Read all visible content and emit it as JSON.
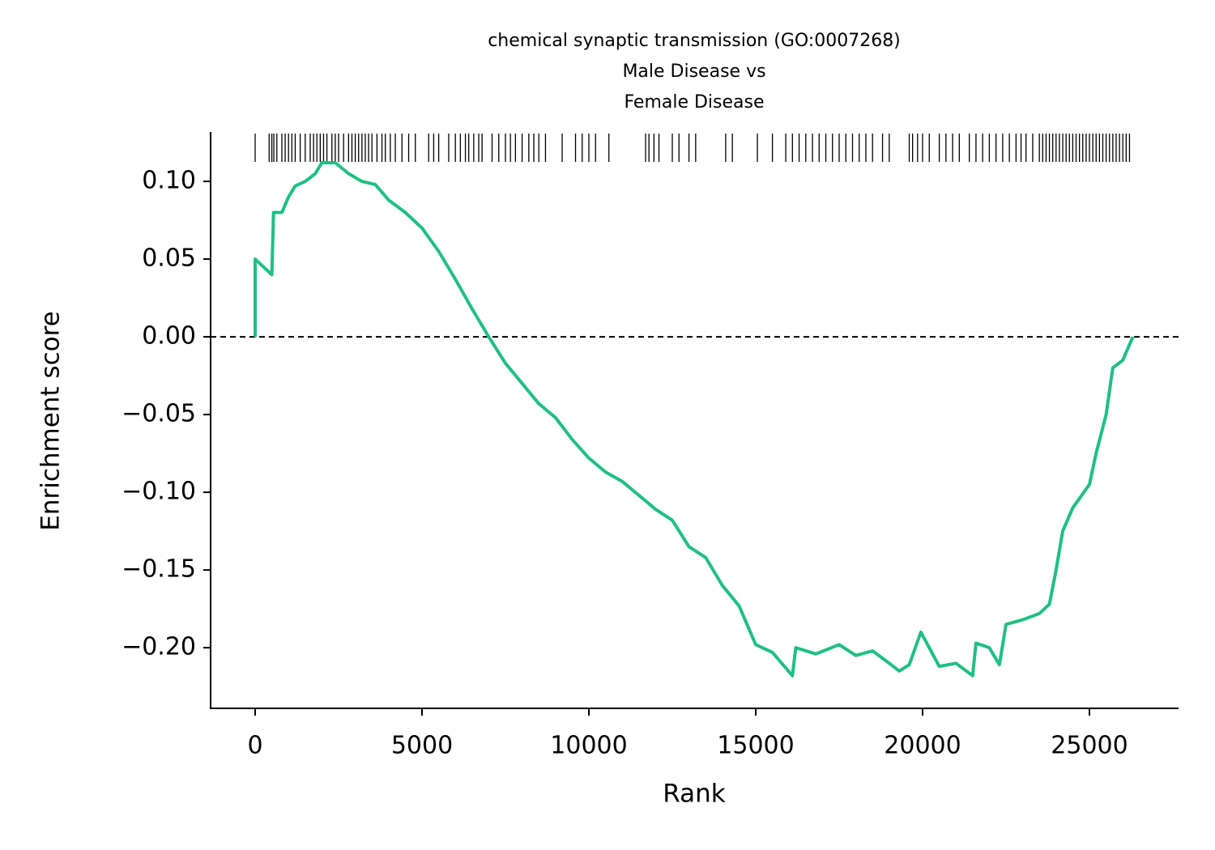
{
  "chart_data": {
    "type": "line",
    "title": [
      "chemical synaptic transmission (GO:0007268)",
      "Male Disease vs",
      "Female Disease"
    ],
    "x_label": "Rank",
    "y_label": "Enrichment score",
    "xlim": [
      -1335,
      27670
    ],
    "ylim": [
      -0.239,
      0.1318
    ],
    "xticks": [
      0,
      5000,
      10000,
      15000,
      20000,
      25000
    ],
    "yticks": [
      {
        "value": -0.2,
        "label": "−0.20"
      },
      {
        "value": -0.15,
        "label": "−0.15"
      },
      {
        "value": -0.1,
        "label": "−0.10"
      },
      {
        "value": -0.05,
        "label": "−0.05"
      },
      {
        "value": 0,
        "label": "0.00"
      },
      {
        "value": 0.05,
        "label": "0.05"
      },
      {
        "value": 0.1,
        "label": "0.10"
      }
    ],
    "reference_line": 0,
    "series": [
      {
        "color": "#1fbf83",
        "x": [
          0,
          0,
          500,
          550,
          800,
          1000,
          1200,
          1500,
          1800,
          2000,
          2400,
          2800,
          3200,
          3600,
          4000,
          4500,
          5000,
          5500,
          6000,
          6500,
          7000,
          7500,
          8000,
          8500,
          9000,
          9500,
          10000,
          10500,
          11000,
          11500,
          12000,
          12500,
          13000,
          13500,
          14000,
          14500,
          15000,
          15500,
          16100,
          16200,
          16800,
          17500,
          18000,
          18500,
          19000,
          19300,
          19600,
          19950,
          20500,
          21000,
          21500,
          21600,
          22000,
          22300,
          22500,
          23000,
          23500,
          23800,
          24000,
          24200,
          24500,
          25000,
          25200,
          25500,
          25700,
          26000,
          26300
        ],
        "values": [
          0,
          0.05,
          0.04,
          0.08,
          0.08,
          0.09,
          0.097,
          0.1,
          0.105,
          0.112,
          0.112,
          0.105,
          0.1,
          0.098,
          0.088,
          0.08,
          0.07,
          0.055,
          0.037,
          0.018,
          0,
          -0.017,
          -0.03,
          -0.043,
          -0.052,
          -0.066,
          -0.078,
          -0.087,
          -0.093,
          -0.102,
          -0.111,
          -0.118,
          -0.135,
          -0.142,
          -0.16,
          -0.173,
          -0.198,
          -0.203,
          -0.218,
          -0.2,
          -0.204,
          -0.198,
          -0.205,
          -0.202,
          -0.21,
          -0.215,
          -0.211,
          -0.19,
          -0.212,
          -0.21,
          -0.218,
          -0.197,
          -0.2,
          -0.211,
          -0.185,
          -0.182,
          -0.178,
          -0.172,
          -0.15,
          -0.125,
          -0.11,
          -0.095,
          -0.075,
          -0.05,
          -0.02,
          -0.015,
          0
        ]
      }
    ],
    "hits": [
      0,
      420,
      500,
      560,
      650,
      800,
      900,
      1000,
      1100,
      1200,
      1350,
      1500,
      1650,
      1750,
      1850,
      1950,
      2050,
      2150,
      2300,
      2400,
      2500,
      2650,
      2800,
      2900,
      3000,
      3100,
      3200,
      3300,
      3400,
      3500,
      3650,
      3800,
      3900,
      4050,
      4200,
      4400,
      4600,
      4800,
      5200,
      5350,
      5500,
      5800,
      6000,
      6150,
      6300,
      6400,
      6550,
      6700,
      6800,
      7100,
      7300,
      7500,
      7650,
      7800,
      8000,
      8200,
      8350,
      8500,
      8700,
      9200,
      9600,
      9800,
      10000,
      10200,
      10600,
      11700,
      11800,
      11950,
      12100,
      12500,
      12700,
      13000,
      13200,
      14100,
      14300,
      15050,
      15500,
      15900,
      16100,
      16300,
      16500,
      16700,
      16900,
      17100,
      17300,
      17500,
      17700,
      17900,
      18100,
      18300,
      18500,
      18800,
      19000,
      19600,
      19700,
      19850,
      20000,
      20200,
      20500,
      20700,
      20900,
      21100,
      21400,
      21600,
      21800,
      22000,
      22200,
      22400,
      22600,
      22800,
      22950,
      23100,
      23300,
      23500,
      23600,
      23700,
      23800,
      23900,
      24000,
      24100,
      24200,
      24300,
      24400,
      24500,
      24600,
      24700,
      24800,
      24900,
      25000,
      25100,
      25200,
      25300,
      25400,
      25500,
      25600,
      25700,
      25800,
      25900,
      26000,
      26100,
      26200
    ]
  }
}
